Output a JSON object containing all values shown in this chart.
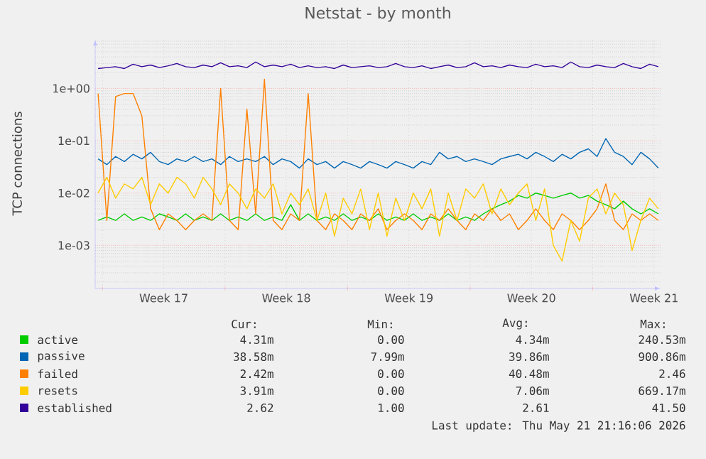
{
  "chart_data": {
    "type": "line",
    "title": "Netstat - by month",
    "ylabel": "TCP connections",
    "log": "y",
    "grid": true,
    "legend": "bottom",
    "xlim": [
      "2026-04-19T14:00",
      "2026-05-21T21:00"
    ],
    "ylim": [
      0.00015,
      8.5
    ],
    "xticks": [
      {
        "value": "2026-04-20",
        "label": null
      },
      {
        "value": "2026-04-23T12:00",
        "label": "Week 17"
      },
      {
        "value": "2026-04-27",
        "label": null
      },
      {
        "value": "2026-04-30T12:00",
        "label": "Week 18"
      },
      {
        "value": "2026-05-04",
        "label": null
      },
      {
        "value": "2026-05-07T12:00",
        "label": "Week 19"
      },
      {
        "value": "2026-05-11",
        "label": null
      },
      {
        "value": "2026-05-14T12:00",
        "label": "Week 20"
      },
      {
        "value": "2026-05-18",
        "label": null
      },
      {
        "value": "2026-05-21T12:00",
        "label": "Week 21"
      }
    ],
    "yticks": [
      {
        "value": 0.001,
        "label": "1e-03"
      },
      {
        "value": 0.01,
        "label": "1e-02"
      },
      {
        "value": 0.1,
        "label": "1e-01"
      },
      {
        "value": 1,
        "label": "1e+00"
      }
    ],
    "x": [
      "2026-04-19T18:00",
      "2026-04-20T06:00",
      "2026-04-20T18:00",
      "2026-04-21T06:00",
      "2026-04-21T18:00",
      "2026-04-22T06:00",
      "2026-04-22T18:00",
      "2026-04-23T06:00",
      "2026-04-23T18:00",
      "2026-04-24T06:00",
      "2026-04-24T18:00",
      "2026-04-25T06:00",
      "2026-04-25T18:00",
      "2026-04-26T06:00",
      "2026-04-26T18:00",
      "2026-04-27T06:00",
      "2026-04-27T18:00",
      "2026-04-28T06:00",
      "2026-04-28T18:00",
      "2026-04-29T06:00",
      "2026-04-29T18:00",
      "2026-04-30T06:00",
      "2026-04-30T18:00",
      "2026-05-01T06:00",
      "2026-05-01T18:00",
      "2026-05-02T06:00",
      "2026-05-02T18:00",
      "2026-05-03T06:00",
      "2026-05-03T18:00",
      "2026-05-04T06:00",
      "2026-05-04T18:00",
      "2026-05-05T06:00",
      "2026-05-05T18:00",
      "2026-05-06T06:00",
      "2026-05-06T18:00",
      "2026-05-07T06:00",
      "2026-05-07T18:00",
      "2026-05-08T06:00",
      "2026-05-08T18:00",
      "2026-05-09T06:00",
      "2026-05-09T18:00",
      "2026-05-10T06:00",
      "2026-05-10T18:00",
      "2026-05-11T06:00",
      "2026-05-11T18:00",
      "2026-05-12T06:00",
      "2026-05-12T18:00",
      "2026-05-13T06:00",
      "2026-05-13T18:00",
      "2026-05-14T06:00",
      "2026-05-14T18:00",
      "2026-05-15T06:00",
      "2026-05-15T18:00",
      "2026-05-16T06:00",
      "2026-05-16T18:00",
      "2026-05-17T06:00",
      "2026-05-17T18:00",
      "2026-05-18T06:00",
      "2026-05-18T18:00",
      "2026-05-19T06:00",
      "2026-05-19T18:00",
      "2026-05-20T06:00",
      "2026-05-20T18:00",
      "2026-05-21T06:00",
      "2026-05-21T18:00"
    ],
    "series": [
      {
        "name": "active",
        "color": "#00cc00",
        "values": [
          0.003,
          0.0035,
          0.003,
          0.004,
          0.003,
          0.0035,
          0.003,
          0.004,
          0.0035,
          0.003,
          0.004,
          0.003,
          0.0035,
          0.003,
          0.004,
          0.003,
          0.0035,
          0.003,
          0.004,
          0.003,
          0.0035,
          0.003,
          0.006,
          0.003,
          0.004,
          0.003,
          0.0035,
          0.003,
          0.004,
          0.003,
          0.0035,
          0.003,
          0.004,
          0.003,
          0.0035,
          0.003,
          0.004,
          0.003,
          0.0035,
          0.003,
          0.004,
          0.003,
          0.0035,
          0.003,
          0.004,
          0.005,
          0.006,
          0.007,
          0.009,
          0.008,
          0.01,
          0.009,
          0.008,
          0.009,
          0.01,
          0.008,
          0.009,
          0.007,
          0.006,
          0.005,
          0.007,
          0.005,
          0.004,
          0.005,
          0.004
        ]
      },
      {
        "name": "passive",
        "color": "#0066b3",
        "values": [
          0.045,
          0.035,
          0.05,
          0.04,
          0.055,
          0.045,
          0.06,
          0.04,
          0.035,
          0.045,
          0.04,
          0.05,
          0.04,
          0.045,
          0.035,
          0.05,
          0.04,
          0.045,
          0.04,
          0.05,
          0.035,
          0.045,
          0.04,
          0.03,
          0.045,
          0.035,
          0.04,
          0.03,
          0.04,
          0.035,
          0.03,
          0.04,
          0.035,
          0.03,
          0.04,
          0.035,
          0.03,
          0.04,
          0.035,
          0.06,
          0.045,
          0.05,
          0.04,
          0.045,
          0.04,
          0.035,
          0.045,
          0.05,
          0.055,
          0.045,
          0.06,
          0.05,
          0.04,
          0.055,
          0.045,
          0.06,
          0.07,
          0.05,
          0.11,
          0.06,
          0.05,
          0.035,
          0.06,
          0.045,
          0.03
        ]
      },
      {
        "name": "failed",
        "color": "#ff8000",
        "values": [
          0.8,
          0.003,
          0.7,
          0.8,
          0.8,
          0.3,
          0.005,
          0.002,
          0.004,
          0.003,
          0.002,
          0.003,
          0.004,
          0.003,
          1.0,
          0.003,
          0.002,
          0.4,
          0.004,
          1.5,
          0.003,
          0.002,
          0.004,
          0.003,
          0.8,
          0.003,
          0.002,
          0.004,
          0.003,
          0.002,
          0.004,
          0.003,
          0.005,
          0.002,
          0.003,
          0.004,
          0.003,
          0.002,
          0.004,
          0.003,
          0.005,
          0.003,
          0.002,
          0.004,
          0.003,
          0.005,
          0.003,
          0.004,
          0.002,
          0.003,
          0.005,
          0.003,
          0.002,
          0.004,
          0.003,
          0.002,
          0.003,
          0.005,
          0.015,
          0.003,
          0.002,
          0.004,
          0.003,
          0.004,
          0.003
        ]
      },
      {
        "name": "resets",
        "color": "#ffcc00",
        "values": [
          0.01,
          0.02,
          0.008,
          0.015,
          0.012,
          0.02,
          0.006,
          0.015,
          0.01,
          0.02,
          0.015,
          0.008,
          0.02,
          0.012,
          0.006,
          0.015,
          0.01,
          0.005,
          0.012,
          0.008,
          0.015,
          0.004,
          0.01,
          0.006,
          0.012,
          0.003,
          0.01,
          0.0015,
          0.008,
          0.004,
          0.012,
          0.002,
          0.01,
          0.0015,
          0.008,
          0.003,
          0.01,
          0.005,
          0.012,
          0.0015,
          0.01,
          0.003,
          0.012,
          0.008,
          0.015,
          0.004,
          0.012,
          0.006,
          0.01,
          0.015,
          0.003,
          0.012,
          0.001,
          0.0005,
          0.003,
          0.0012,
          0.008,
          0.012,
          0.004,
          0.01,
          0.006,
          0.0008,
          0.003,
          0.008,
          0.005
        ]
      },
      {
        "name": "established",
        "color": "#330099",
        "values": [
          2.4,
          2.5,
          2.6,
          2.4,
          2.9,
          2.6,
          2.8,
          2.5,
          2.7,
          3.0,
          2.6,
          2.5,
          2.8,
          2.6,
          3.1,
          2.6,
          2.7,
          2.5,
          3.2,
          2.6,
          2.8,
          2.6,
          2.9,
          2.5,
          2.7,
          2.5,
          2.6,
          2.4,
          2.8,
          2.5,
          2.6,
          2.7,
          2.5,
          2.6,
          3.0,
          2.6,
          2.5,
          2.7,
          2.4,
          2.6,
          2.8,
          2.5,
          2.6,
          3.1,
          2.6,
          2.7,
          2.5,
          2.8,
          2.6,
          2.5,
          2.9,
          2.6,
          2.7,
          2.5,
          3.2,
          2.6,
          2.5,
          2.8,
          2.6,
          2.5,
          3.0,
          2.6,
          2.4,
          2.9,
          2.6
        ]
      }
    ],
    "annotations": [
      "Cur:",
      "Min:",
      "Avg:",
      "Max:",
      "4.31m",
      "0.00",
      "4.34m",
      "240.53m",
      "38.58m",
      "7.99m",
      "39.86m",
      "900.86m",
      "2.42m",
      "0.00",
      "40.48m",
      "2.46",
      "3.91m",
      "0.00",
      "7.06m",
      "669.17m",
      "2.62",
      "1.00",
      "2.61",
      "41.50",
      "Last update: Thu May 21 21:16:06 2026"
    ]
  }
}
